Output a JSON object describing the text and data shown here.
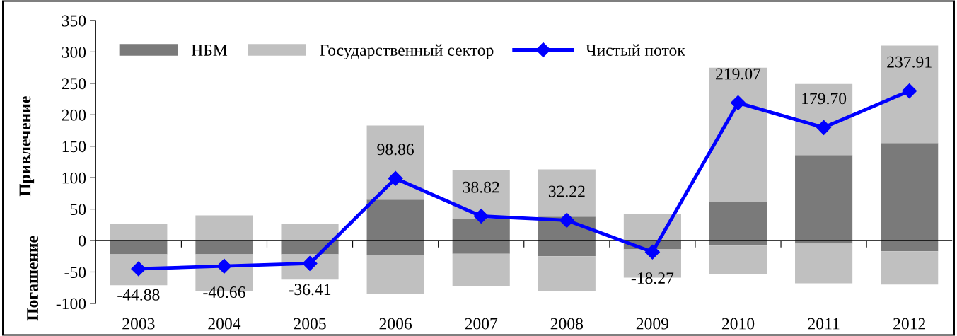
{
  "chart_data": {
    "type": "bar",
    "stacked": true,
    "ylabel": "Привлечение",
    "annotations": [
      "Погашение"
    ],
    "categories": [
      "2003",
      "2004",
      "2005",
      "2006",
      "2007",
      "2008",
      "2009",
      "2010",
      "2011",
      "2012"
    ],
    "series": [
      {
        "name": "НБМ",
        "color": "#7a7a7a",
        "values": [
          0,
          0,
          0,
          65,
          34,
          38,
          0,
          62,
          136,
          155
        ]
      },
      {
        "color": "#7a7a7a",
        "values": [
          -22,
          -22,
          -22,
          -23,
          -21,
          -25,
          -14,
          -8,
          -5,
          -17
        ]
      },
      {
        "name": "Государственный сектор",
        "color": "#c0c0c0",
        "values": [
          26,
          40,
          26,
          118,
          78,
          75,
          42,
          213,
          113,
          155
        ]
      },
      {
        "color": "#c0c0c0",
        "values": [
          -49,
          -59,
          -40,
          -62,
          -52,
          -55,
          -45,
          -46,
          -63,
          -53
        ]
      },
      {
        "name": "Чистый поток",
        "type": "line",
        "color": "#0000ff",
        "marker": "diamond",
        "line_style": "solid",
        "values": [
          -44.88,
          -40.66,
          -36.41,
          98.86,
          38.82,
          32.22,
          -18.27,
          219.07,
          179.7,
          237.91
        ],
        "value_labels": [
          "-44.88",
          "-40.66",
          "-36.41",
          "98.86",
          "38.82",
          "32.22",
          "-18.27",
          "219.07",
          "179.70",
          "237.91"
        ]
      }
    ],
    "ylim": [
      -100,
      350
    ],
    "yticks": [
      -100,
      -50,
      0,
      50,
      100,
      150,
      200,
      250,
      300,
      350
    ],
    "ref_lines": [
      {
        "axis": "y",
        "value": 0,
        "color": "#000000"
      }
    ],
    "grid": false,
    "legend": "top left"
  }
}
